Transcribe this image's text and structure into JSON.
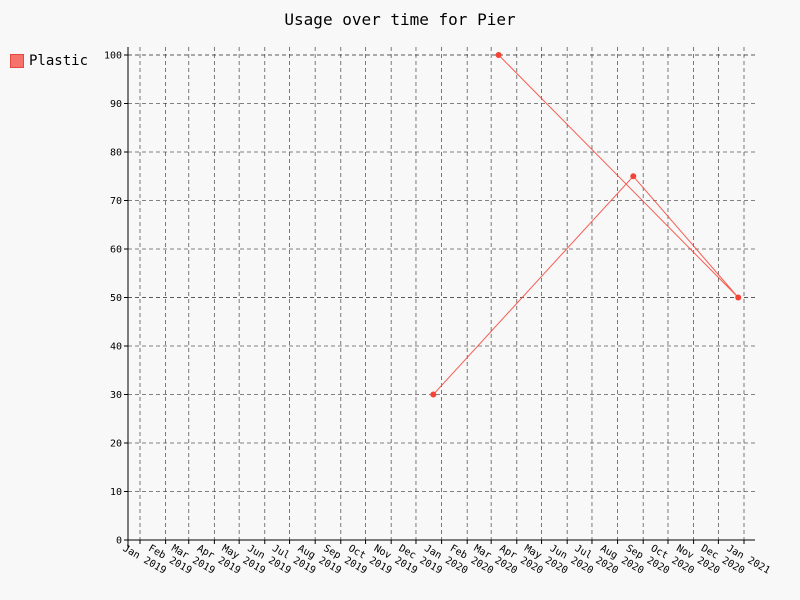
{
  "chart_data": {
    "type": "line",
    "title": "Usage over time for Pier",
    "xlabel": "",
    "ylabel": "",
    "ylim": [
      0,
      100
    ],
    "yticks": [
      0,
      10,
      20,
      30,
      40,
      50,
      60,
      70,
      80,
      90,
      100
    ],
    "xticks": [
      "Jan 2019",
      "Feb 2019",
      "Mar 2019",
      "Apr 2019",
      "May 2019",
      "Jun 2019",
      "Jul 2019",
      "Aug 2019",
      "Sep 2019",
      "Oct 2019",
      "Nov 2019",
      "Dec 2019",
      "Jan 2020",
      "Feb 2020",
      "Mar 2020",
      "Apr 2020",
      "May 2020",
      "Jun 2020",
      "Jul 2020",
      "Aug 2020",
      "Sep 2020",
      "Oct 2020",
      "Nov 2020",
      "Dec 2020",
      "Jan 2021"
    ],
    "grid": true,
    "legend_position": "top-left",
    "series": [
      {
        "name": "Plastic",
        "color": "#f44336",
        "points": [
          {
            "x": "2019-12-22",
            "y": 30
          },
          {
            "x": "2020-08-20",
            "y": 75
          },
          {
            "x": "2020-12-25",
            "y": 50
          },
          {
            "x": "2020-03-10",
            "y": 100
          }
        ]
      }
    ]
  }
}
